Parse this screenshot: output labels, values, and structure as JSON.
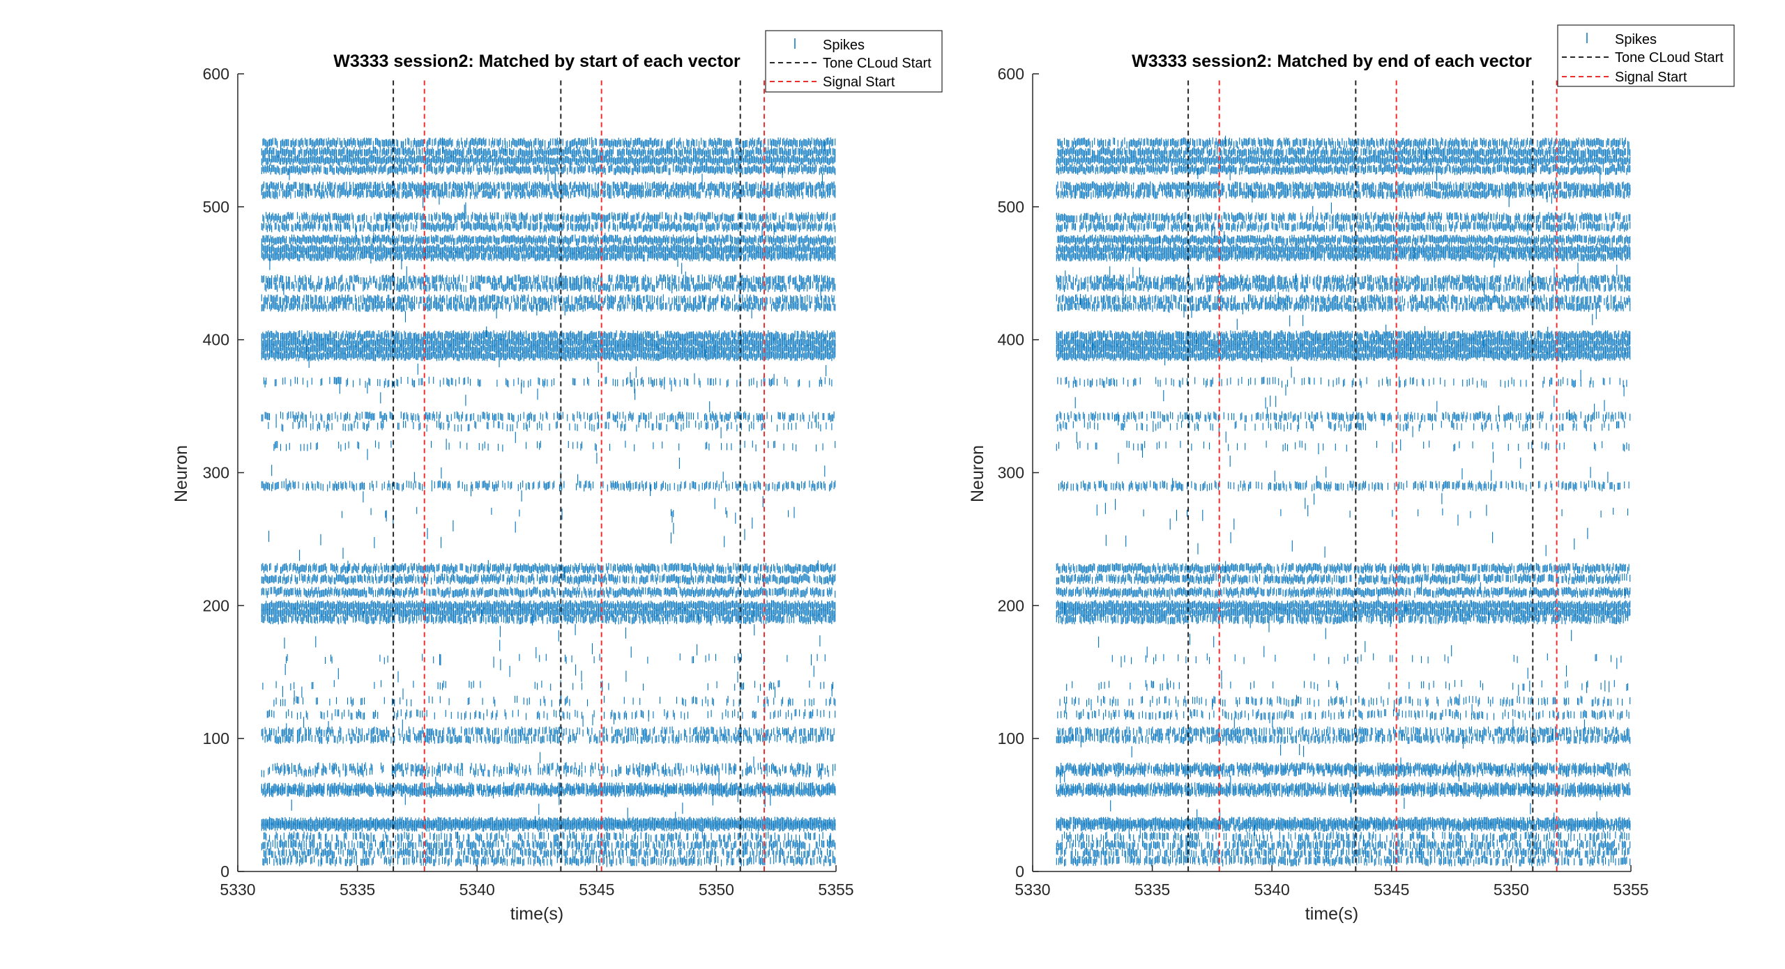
{
  "colors": {
    "spikes": "#0072BD",
    "tone_cloud_start": "#262626",
    "signal_start": "#EE2D2D",
    "axis": "#262626",
    "background": "#FFFFFF"
  },
  "chart_data": [
    {
      "type": "scatter",
      "marker": "vertical-tick",
      "title": "W3333 session2: Matched by start of each vector",
      "xlabel": "time(s)",
      "ylabel": "Neuron",
      "xlim": [
        5330,
        5355
      ],
      "ylim": [
        0,
        600
      ],
      "xticks": [
        5330,
        5335,
        5340,
        5345,
        5350,
        5355
      ],
      "yticks": [
        0,
        100,
        200,
        300,
        400,
        500,
        600
      ],
      "grid": false,
      "legend_position": "top-right",
      "legend": [
        "Spikes",
        "Tone CLoud Start",
        "Signal Start"
      ],
      "spike_time_range": [
        5331.0,
        5355.0
      ],
      "tone_cloud_start": [
        5336.5,
        5343.5,
        5351.0
      ],
      "signal_start": [
        5337.8,
        5345.2,
        5352.0
      ],
      "rasters": [
        {
          "neuron": 8,
          "density": 0.6
        },
        {
          "neuron": 14,
          "density": 0.55
        },
        {
          "neuron": 20,
          "density": 0.65
        },
        {
          "neuron": 26,
          "density": 0.45
        },
        {
          "neuron": 34,
          "density": 1.0
        },
        {
          "neuron": 37,
          "density": 1.0
        },
        {
          "neuron": 60,
          "density": 0.85
        },
        {
          "neuron": 63,
          "density": 0.8
        },
        {
          "neuron": 75,
          "density": 0.35
        },
        {
          "neuron": 78,
          "density": 0.45
        },
        {
          "neuron": 100,
          "density": 0.6
        },
        {
          "neuron": 105,
          "density": 0.55
        },
        {
          "neuron": 118,
          "density": 0.3
        },
        {
          "neuron": 128,
          "density": 0.15
        },
        {
          "neuron": 140,
          "density": 0.08
        },
        {
          "neuron": 160,
          "density": 0.06
        },
        {
          "neuron": 190,
          "density": 0.75
        },
        {
          "neuron": 195,
          "density": 1.0
        },
        {
          "neuron": 200,
          "density": 1.0
        },
        {
          "neuron": 210,
          "density": 0.85
        },
        {
          "neuron": 220,
          "density": 0.8
        },
        {
          "neuron": 228,
          "density": 0.85
        },
        {
          "neuron": 270,
          "density": 0.03
        },
        {
          "neuron": 290,
          "density": 0.5
        },
        {
          "neuron": 320,
          "density": 0.12
        },
        {
          "neuron": 335,
          "density": 0.25
        },
        {
          "neuron": 342,
          "density": 0.55
        },
        {
          "neuron": 368,
          "density": 0.3
        },
        {
          "neuron": 388,
          "density": 1.0
        },
        {
          "neuron": 393,
          "density": 1.0
        },
        {
          "neuron": 398,
          "density": 1.0
        },
        {
          "neuron": 403,
          "density": 0.9
        },
        {
          "neuron": 425,
          "density": 0.75
        },
        {
          "neuron": 430,
          "density": 0.7
        },
        {
          "neuron": 440,
          "density": 0.75
        },
        {
          "neuron": 445,
          "density": 0.7
        },
        {
          "neuron": 463,
          "density": 0.95
        },
        {
          "neuron": 468,
          "density": 1.0
        },
        {
          "neuron": 475,
          "density": 0.95
        },
        {
          "neuron": 485,
          "density": 0.8
        },
        {
          "neuron": 492,
          "density": 0.75
        },
        {
          "neuron": 510,
          "density": 0.8
        },
        {
          "neuron": 515,
          "density": 0.85
        },
        {
          "neuron": 528,
          "density": 0.9
        },
        {
          "neuron": 535,
          "density": 1.0
        },
        {
          "neuron": 541,
          "density": 0.9
        },
        {
          "neuron": 548,
          "density": 0.8
        }
      ]
    },
    {
      "type": "scatter",
      "marker": "vertical-tick",
      "title": "W3333 session2: Matched by end of each vector",
      "xlabel": "time(s)",
      "ylabel": "Neuron",
      "xlim": [
        5330,
        5355
      ],
      "ylim": [
        0,
        600
      ],
      "xticks": [
        5330,
        5335,
        5340,
        5345,
        5350,
        5355
      ],
      "yticks": [
        0,
        100,
        200,
        300,
        400,
        500,
        600
      ],
      "grid": false,
      "legend_position": "top-right",
      "legend": [
        "Spikes",
        "Tone CLoud Start",
        "Signal Start"
      ],
      "spike_time_range": [
        5331.0,
        5355.0
      ],
      "tone_cloud_start": [
        5336.5,
        5343.5,
        5350.9
      ],
      "signal_start": [
        5337.8,
        5345.2,
        5351.9
      ],
      "rasters": [
        {
          "neuron": 8,
          "density": 0.6
        },
        {
          "neuron": 14,
          "density": 0.6
        },
        {
          "neuron": 20,
          "density": 0.65
        },
        {
          "neuron": 26,
          "density": 0.45
        },
        {
          "neuron": 34,
          "density": 0.9
        },
        {
          "neuron": 37,
          "density": 0.95
        },
        {
          "neuron": 60,
          "density": 0.85
        },
        {
          "neuron": 63,
          "density": 0.8
        },
        {
          "neuron": 75,
          "density": 0.6
        },
        {
          "neuron": 78,
          "density": 0.8
        },
        {
          "neuron": 100,
          "density": 0.6
        },
        {
          "neuron": 105,
          "density": 0.6
        },
        {
          "neuron": 118,
          "density": 0.4
        },
        {
          "neuron": 128,
          "density": 0.3
        },
        {
          "neuron": 140,
          "density": 0.1
        },
        {
          "neuron": 160,
          "density": 0.06
        },
        {
          "neuron": 190,
          "density": 0.75
        },
        {
          "neuron": 195,
          "density": 1.0
        },
        {
          "neuron": 200,
          "density": 1.0
        },
        {
          "neuron": 210,
          "density": 0.85
        },
        {
          "neuron": 220,
          "density": 0.8
        },
        {
          "neuron": 228,
          "density": 0.85
        },
        {
          "neuron": 270,
          "density": 0.03
        },
        {
          "neuron": 290,
          "density": 0.5
        },
        {
          "neuron": 320,
          "density": 0.12
        },
        {
          "neuron": 335,
          "density": 0.25
        },
        {
          "neuron": 342,
          "density": 0.55
        },
        {
          "neuron": 368,
          "density": 0.3
        },
        {
          "neuron": 388,
          "density": 1.0
        },
        {
          "neuron": 393,
          "density": 1.0
        },
        {
          "neuron": 398,
          "density": 1.0
        },
        {
          "neuron": 403,
          "density": 0.9
        },
        {
          "neuron": 425,
          "density": 0.75
        },
        {
          "neuron": 430,
          "density": 0.7
        },
        {
          "neuron": 440,
          "density": 0.75
        },
        {
          "neuron": 445,
          "density": 0.7
        },
        {
          "neuron": 463,
          "density": 0.95
        },
        {
          "neuron": 468,
          "density": 1.0
        },
        {
          "neuron": 475,
          "density": 0.95
        },
        {
          "neuron": 485,
          "density": 0.8
        },
        {
          "neuron": 492,
          "density": 0.75
        },
        {
          "neuron": 510,
          "density": 0.8
        },
        {
          "neuron": 515,
          "density": 0.85
        },
        {
          "neuron": 528,
          "density": 0.9
        },
        {
          "neuron": 535,
          "density": 1.0
        },
        {
          "neuron": 541,
          "density": 0.9
        },
        {
          "neuron": 548,
          "density": 0.8
        }
      ]
    }
  ]
}
